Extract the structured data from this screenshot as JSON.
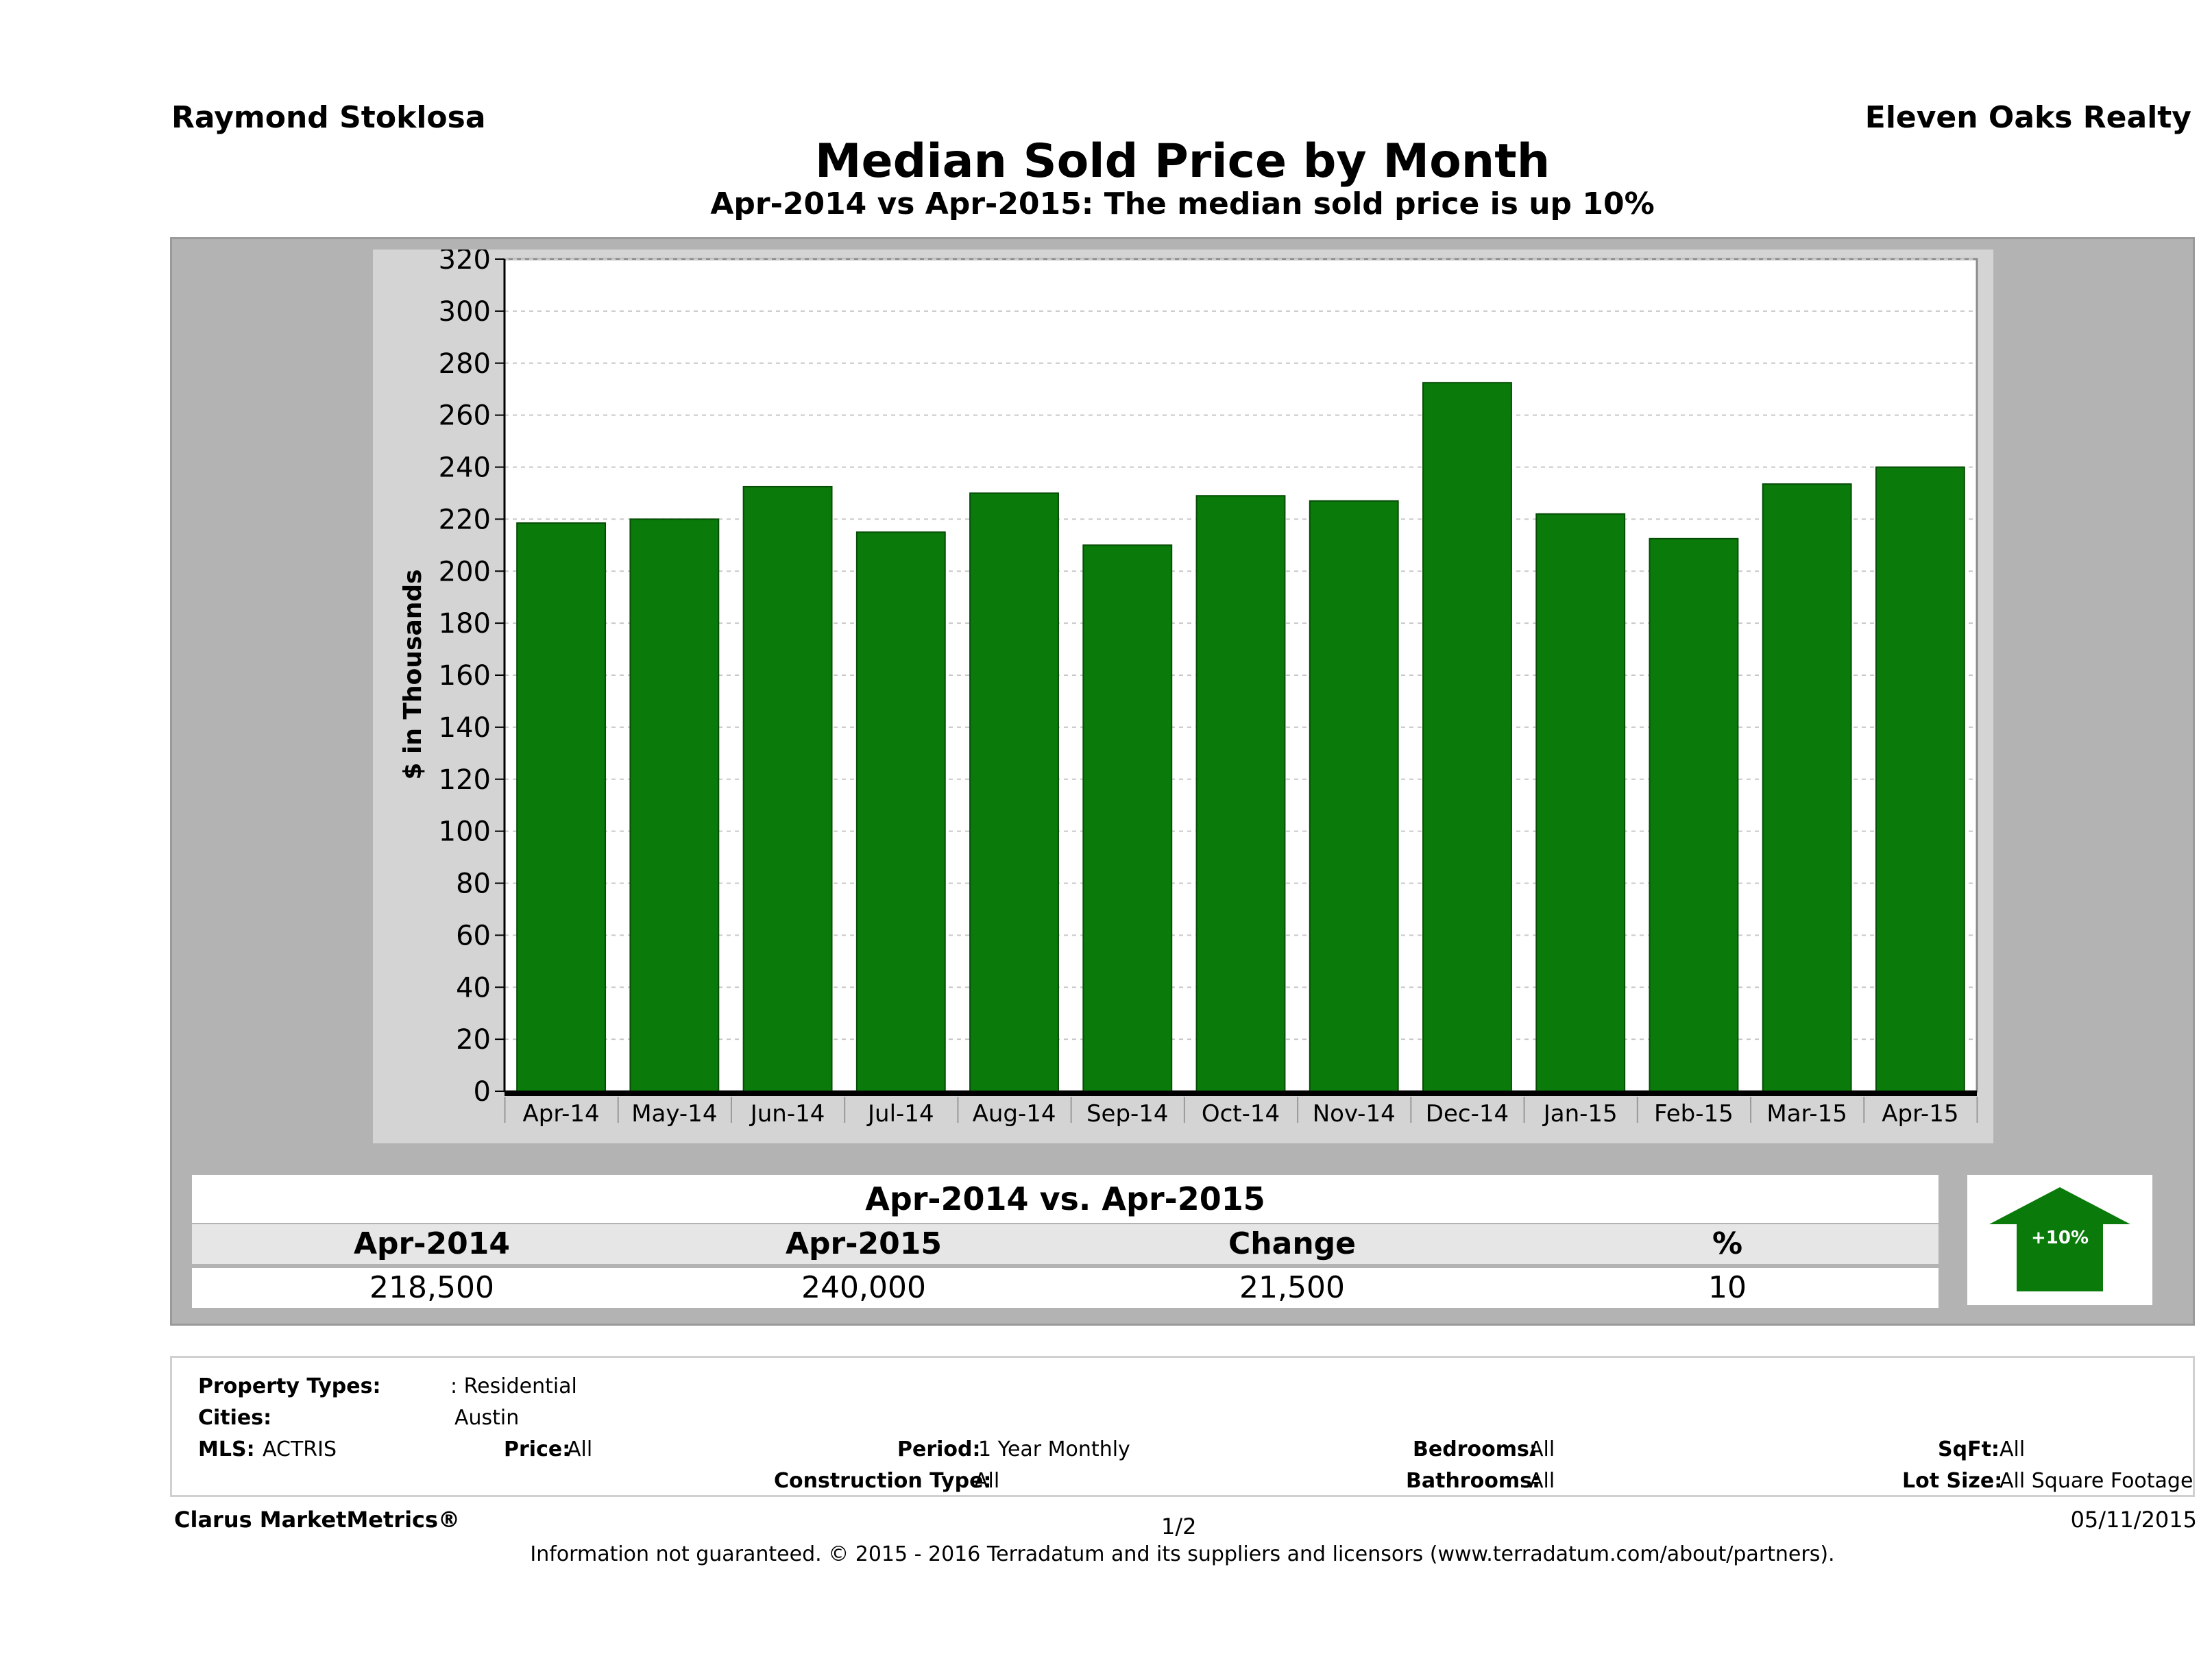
{
  "header": {
    "agent_name": "Raymond Stoklosa",
    "brokerage": "Eleven Oaks Realty",
    "title": "Median Sold Price by Month",
    "subtitle": "Apr-2014 vs Apr-2015: The median sold price is up 10%"
  },
  "chart_data": {
    "type": "bar",
    "title": "Median Sold Price by Month",
    "subtitle": "Apr-2014 vs Apr-2015: The median sold price is up 10%",
    "xlabel": "",
    "ylabel": "$ in Thousands",
    "categories": [
      "Apr-14",
      "May-14",
      "Jun-14",
      "Jul-14",
      "Aug-14",
      "Sep-14",
      "Oct-14",
      "Nov-14",
      "Dec-14",
      "Jan-15",
      "Feb-15",
      "Mar-15",
      "Apr-15"
    ],
    "values": [
      218.5,
      220,
      232.5,
      215,
      230,
      210,
      229,
      227,
      272.5,
      222,
      212.5,
      233.5,
      240
    ],
    "ylim": [
      0,
      320
    ],
    "yticks": [
      0,
      20,
      40,
      60,
      80,
      100,
      120,
      140,
      160,
      180,
      200,
      220,
      240,
      260,
      280,
      300,
      320
    ],
    "grid": true,
    "bar_color": "#0a7a0a"
  },
  "summary": {
    "title": "Apr-2014 vs. Apr-2015",
    "headers": [
      "Apr-2014",
      "Apr-2015",
      "Change",
      "%"
    ],
    "values": [
      "218,500",
      "240,000",
      "21,500",
      "10"
    ],
    "badge": "+10%",
    "badge_color": "#0a7a0a"
  },
  "filters": {
    "property_types_label": "Property Types:",
    "property_types_value": ": Residential",
    "cities_label": "Cities:",
    "cities_value": "Austin",
    "mls_label": "MLS:",
    "mls_value": "ACTRIS",
    "price_label": "Price:",
    "price_value": "All",
    "period_label": "Period:",
    "period_value": "1 Year Monthly",
    "construction_label": "Construction Type:",
    "construction_value": "All",
    "bedrooms_label": "Bedrooms:",
    "bedrooms_value": "All",
    "bathrooms_label": "Bathrooms:",
    "bathrooms_value": "All",
    "sqft_label": "SqFt:",
    "sqft_value": "All",
    "lotsize_label": "Lot Size:",
    "lotsize_value": "All Square Footage"
  },
  "footer": {
    "brand": "Clarus MarketMetrics®",
    "page": "1/2",
    "date": "05/11/2015",
    "disclaimer": "Information not guaranteed. © 2015 - 2016 Terradatum and its suppliers and licensors (www.terradatum.com/about/partners)."
  }
}
